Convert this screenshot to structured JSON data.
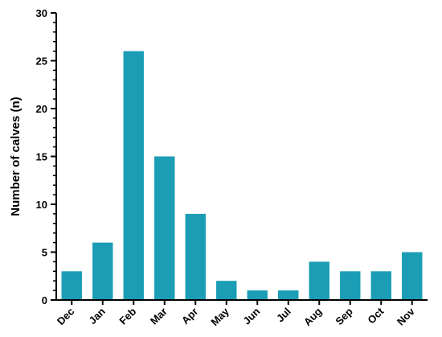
{
  "chart_data": {
    "type": "bar",
    "title": "",
    "xlabel": "",
    "ylabel": "Number of calves (n)",
    "ylim": [
      0,
      30
    ],
    "yticks": [
      0,
      5,
      10,
      15,
      20,
      25,
      30
    ],
    "yminor_step": 1,
    "grid": false,
    "bar_color": "#1a9db5",
    "categories": [
      "Dec",
      "Jan",
      "Feb",
      "Mar",
      "Apr",
      "May",
      "Jun",
      "Jul",
      "Aug",
      "Sep",
      "Oct",
      "Nov"
    ],
    "values": [
      3,
      6,
      26,
      15,
      9,
      2,
      1,
      1,
      4,
      3,
      3,
      5
    ]
  }
}
